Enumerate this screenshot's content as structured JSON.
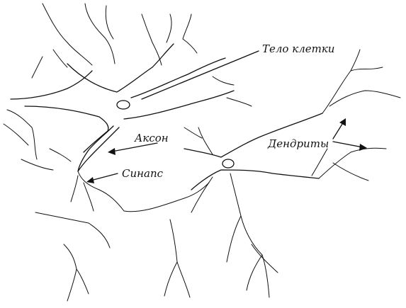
{
  "labels": {
    "cell_body": "Тело клетки",
    "axon": "Аксон",
    "synapse": "Синапс",
    "dendrites": "Дендриты"
  },
  "colors": {
    "ink": "#111111",
    "background": "#ffffff"
  }
}
